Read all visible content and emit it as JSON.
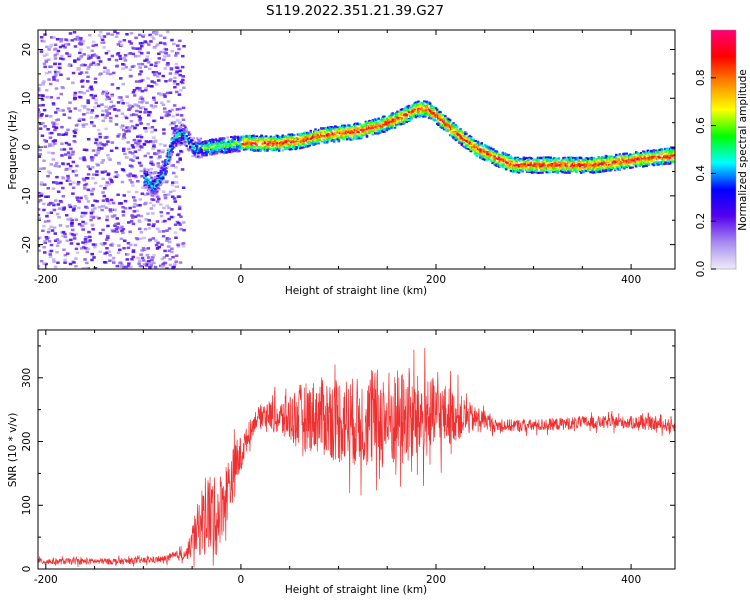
{
  "title": "S119.2022.351.21.39.G27",
  "chart_data": [
    {
      "type": "heatmap",
      "xlabel": "Height of straight line (km)",
      "ylabel": "Frequency (Hz)",
      "xlim": [
        -208,
        445
      ],
      "ylim": [
        -25,
        24
      ],
      "x_ticks": [
        -200,
        0,
        200,
        400
      ],
      "y_ticks": [
        -20,
        -10,
        0,
        10,
        20
      ],
      "colorbar": {
        "label": "Normalized spectral amplitude",
        "range": [
          0,
          1
        ],
        "ticks": [
          0.0,
          0.2,
          0.4,
          0.6,
          0.8
        ],
        "colors": [
          "#f0ecfb",
          "#a78bef",
          "#5500ee",
          "#0000ff",
          "#00ffff",
          "#00ff00",
          "#ffff00",
          "#ff8800",
          "#ff0000",
          "#ff0077"
        ]
      },
      "ridge": {
        "x": [
          -100,
          -90,
          -80,
          -70,
          -60,
          -50,
          -40,
          -20,
          0,
          20,
          40,
          60,
          80,
          100,
          120,
          140,
          160,
          180,
          190,
          200,
          220,
          240,
          260,
          280,
          300,
          320,
          340,
          360,
          380,
          400,
          420,
          445
        ],
        "y": [
          -6,
          -8,
          -5,
          2,
          3,
          0,
          0,
          0.5,
          1,
          1,
          1,
          1.5,
          2.5,
          3,
          3.5,
          4.5,
          6,
          8,
          8,
          6.5,
          3,
          0,
          -2,
          -3.5,
          -3.5,
          -3.5,
          -3.5,
          -3.5,
          -3,
          -2.5,
          -2,
          -1.5
        ]
      }
    },
    {
      "type": "line",
      "xlabel": "Height of straight line (km)",
      "ylabel": "SNR (10 * v/v)",
      "xlim": [
        -208,
        445
      ],
      "ylim": [
        0,
        375
      ],
      "x_ticks": [
        -200,
        0,
        200,
        400
      ],
      "y_ticks": [
        0,
        100,
        200,
        300
      ],
      "color": "#f03030",
      "envelope": {
        "x": [
          -208,
          -120,
          -80,
          -55,
          -45,
          -35,
          -25,
          -15,
          -5,
          5,
          15,
          25,
          40,
          60,
          80,
          100,
          120,
          140,
          160,
          180,
          200,
          220,
          240,
          250,
          260,
          300,
          350,
          400,
          445
        ],
        "mean": [
          12,
          12,
          15,
          25,
          60,
          90,
          80,
          120,
          160,
          200,
          235,
          245,
          235,
          240,
          240,
          235,
          230,
          235,
          235,
          235,
          240,
          240,
          235,
          235,
          225,
          225,
          230,
          230,
          225
        ],
        "spread": [
          5,
          5,
          5,
          10,
          40,
          70,
          60,
          50,
          40,
          20,
          15,
          20,
          30,
          50,
          60,
          70,
          70,
          80,
          80,
          70,
          60,
          40,
          20,
          15,
          10,
          10,
          10,
          10,
          10
        ]
      }
    }
  ]
}
